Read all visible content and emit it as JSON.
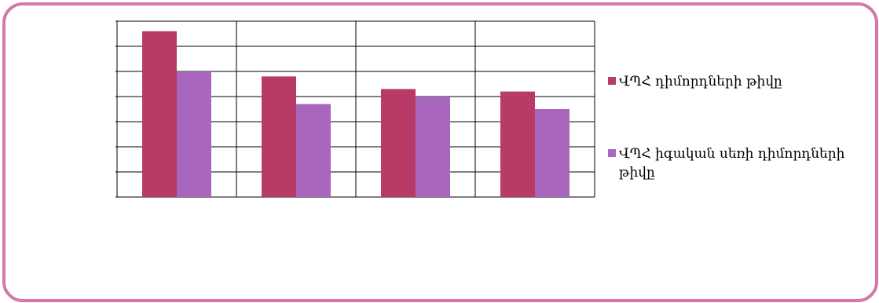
{
  "colors": {
    "frame_border": "#d27bab",
    "series_1": "#b83a66",
    "series_2": "#a966bd",
    "grid": "#000000"
  },
  "chart_data": {
    "type": "bar",
    "categories": [
      "",
      "",
      "",
      ""
    ],
    "series": [
      {
        "name": "ՎՊՀ դիմորդների թիվը",
        "values": [
          6.6,
          4.8,
          4.3,
          4.2
        ]
      },
      {
        "name": "ՎՊՀ իգական սեռի դիմորդների թիվը",
        "values": [
          5.0,
          3.7,
          4.0,
          3.5
        ]
      }
    ],
    "ylim": [
      0,
      7
    ],
    "grid": true,
    "legend_position": "right"
  }
}
